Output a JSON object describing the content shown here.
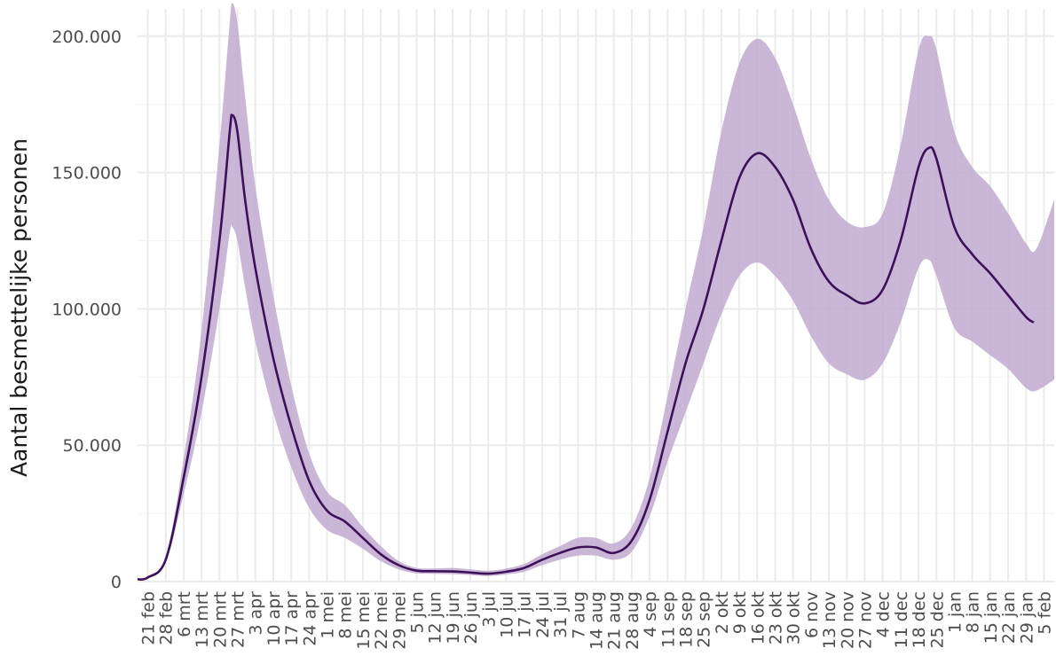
{
  "chart_data": {
    "type": "area",
    "title": "",
    "xlabel": "",
    "ylabel": "Aantal besmettelijke personen",
    "grid": true,
    "legend": "none",
    "colors": {
      "line": "#3d1157",
      "band": "#c1aad0",
      "grid": "#ebebeb",
      "text": "#4d4d4d"
    },
    "ylim": [
      0,
      210000
    ],
    "y_ticks": [
      0,
      50000,
      100000,
      150000,
      200000
    ],
    "y_tick_labels": [
      "0",
      "50.000",
      "100.000",
      "150.000",
      "200.000"
    ],
    "x_tick_labels": [
      "21 feb",
      "28 feb",
      "6 mrt",
      "13 mrt",
      "20 mrt",
      "27 mrt",
      "3 apr",
      "10 apr",
      "17 apr",
      "24 apr",
      "1 mei",
      "8 mei",
      "15 mei",
      "22 mei",
      "29 mei",
      "5 jun",
      "12 jun",
      "19 jun",
      "26 jun",
      "3 jul",
      "10 jul",
      "17 jul",
      "24 jul",
      "31 jul",
      "7 aug",
      "14 aug",
      "21 aug",
      "28 aug",
      "4 sep",
      "11 sep",
      "18 sep",
      "25 sep",
      "2 okt",
      "9 okt",
      "16 okt",
      "23 okt",
      "30 okt",
      "6 nov",
      "13 nov",
      "20 nov",
      "27 nov",
      "4 dec",
      "11 dec",
      "18 dec",
      "25 dec",
      "1 jan",
      "8 jan",
      "15 jan",
      "22 jan",
      "29 jan",
      "5 feb"
    ],
    "x_start": "2020-02-17",
    "x_end": "2021-02-09",
    "series": [
      {
        "kind": "estimate",
        "points": [
          [
            "2020-02-17",
            800
          ],
          [
            "2020-02-21",
            1500
          ],
          [
            "2020-02-28",
            8000
          ],
          [
            "2020-03-06",
            38000
          ],
          [
            "2020-03-13",
            75000
          ],
          [
            "2020-03-20",
            125000
          ],
          [
            "2020-03-24",
            165000
          ],
          [
            "2020-03-25",
            171000
          ],
          [
            "2020-03-27",
            165000
          ],
          [
            "2020-03-30",
            140000
          ],
          [
            "2020-04-03",
            115000
          ],
          [
            "2020-04-10",
            82000
          ],
          [
            "2020-04-17",
            57000
          ],
          [
            "2020-04-24",
            37000
          ],
          [
            "2020-05-01",
            26000
          ],
          [
            "2020-05-08",
            22000
          ],
          [
            "2020-05-15",
            16000
          ],
          [
            "2020-05-22",
            10000
          ],
          [
            "2020-05-29",
            6000
          ],
          [
            "2020-06-05",
            4000
          ],
          [
            "2020-06-12",
            3800
          ],
          [
            "2020-06-19",
            3700
          ],
          [
            "2020-06-26",
            3300
          ],
          [
            "2020-07-03",
            2900
          ],
          [
            "2020-07-10",
            3600
          ],
          [
            "2020-07-17",
            5000
          ],
          [
            "2020-07-24",
            8000
          ],
          [
            "2020-07-31",
            10500
          ],
          [
            "2020-08-07",
            12500
          ],
          [
            "2020-08-14",
            12500
          ],
          [
            "2020-08-21",
            10500
          ],
          [
            "2020-08-28",
            15000
          ],
          [
            "2020-09-04",
            30000
          ],
          [
            "2020-09-11",
            55000
          ],
          [
            "2020-09-18",
            80000
          ],
          [
            "2020-09-25",
            100000
          ],
          [
            "2020-10-02",
            125000
          ],
          [
            "2020-10-09",
            148000
          ],
          [
            "2020-10-16",
            157000
          ],
          [
            "2020-10-23",
            152000
          ],
          [
            "2020-10-30",
            140000
          ],
          [
            "2020-11-06",
            122000
          ],
          [
            "2020-11-13",
            110000
          ],
          [
            "2020-11-20",
            105000
          ],
          [
            "2020-11-27",
            102000
          ],
          [
            "2020-12-04",
            107000
          ],
          [
            "2020-12-11",
            125000
          ],
          [
            "2020-12-18",
            152000
          ],
          [
            "2020-12-22",
            159000
          ],
          [
            "2020-12-25",
            155000
          ],
          [
            "2021-01-01",
            130000
          ],
          [
            "2021-01-08",
            120000
          ],
          [
            "2021-01-15",
            113000
          ],
          [
            "2021-01-22",
            105000
          ],
          [
            "2021-01-29",
            97000
          ],
          [
            "2021-02-01",
            95000
          ]
        ]
      },
      {
        "kind": "upper",
        "points": [
          [
            "2020-02-17",
            800
          ],
          [
            "2020-02-21",
            1600
          ],
          [
            "2020-02-28",
            9000
          ],
          [
            "2020-03-06",
            45000
          ],
          [
            "2020-03-13",
            92000
          ],
          [
            "2020-03-20",
            160000
          ],
          [
            "2020-03-24",
            205000
          ],
          [
            "2020-03-25",
            212000
          ],
          [
            "2020-03-27",
            205000
          ],
          [
            "2020-03-30",
            178000
          ],
          [
            "2020-04-03",
            145000
          ],
          [
            "2020-04-10",
            105000
          ],
          [
            "2020-04-17",
            72000
          ],
          [
            "2020-04-24",
            47000
          ],
          [
            "2020-05-01",
            33000
          ],
          [
            "2020-05-08",
            28000
          ],
          [
            "2020-05-15",
            20000
          ],
          [
            "2020-05-22",
            13000
          ],
          [
            "2020-05-29",
            7500
          ],
          [
            "2020-06-05",
            5000
          ],
          [
            "2020-06-12",
            4800
          ],
          [
            "2020-06-19",
            5000
          ],
          [
            "2020-06-26",
            4500
          ],
          [
            "2020-07-03",
            4000
          ],
          [
            "2020-07-10",
            4800
          ],
          [
            "2020-07-17",
            6500
          ],
          [
            "2020-07-24",
            10000
          ],
          [
            "2020-07-31",
            13000
          ],
          [
            "2020-08-07",
            16000
          ],
          [
            "2020-08-14",
            16000
          ],
          [
            "2020-08-21",
            14000
          ],
          [
            "2020-08-28",
            20000
          ],
          [
            "2020-09-04",
            38000
          ],
          [
            "2020-09-11",
            68000
          ],
          [
            "2020-09-18",
            100000
          ],
          [
            "2020-09-25",
            130000
          ],
          [
            "2020-10-02",
            165000
          ],
          [
            "2020-10-09",
            190000
          ],
          [
            "2020-10-16",
            199000
          ],
          [
            "2020-10-23",
            192000
          ],
          [
            "2020-10-30",
            175000
          ],
          [
            "2020-11-06",
            155000
          ],
          [
            "2020-11-13",
            140000
          ],
          [
            "2020-11-20",
            132000
          ],
          [
            "2020-11-27",
            130000
          ],
          [
            "2020-12-04",
            135000
          ],
          [
            "2020-12-11",
            160000
          ],
          [
            "2020-12-18",
            195000
          ],
          [
            "2020-12-22",
            200000
          ],
          [
            "2020-12-25",
            195000
          ],
          [
            "2021-01-01",
            165000
          ],
          [
            "2021-01-08",
            152000
          ],
          [
            "2021-01-15",
            145000
          ],
          [
            "2021-01-22",
            135000
          ],
          [
            "2021-01-29",
            124000
          ],
          [
            "2021-02-02",
            122000
          ],
          [
            "2021-02-09",
            140000
          ]
        ]
      },
      {
        "kind": "lower",
        "points": [
          [
            "2020-02-17",
            800
          ],
          [
            "2020-02-21",
            1400
          ],
          [
            "2020-02-28",
            7000
          ],
          [
            "2020-03-06",
            32000
          ],
          [
            "2020-03-13",
            62000
          ],
          [
            "2020-03-20",
            100000
          ],
          [
            "2020-03-24",
            128000
          ],
          [
            "2020-03-25",
            130000
          ],
          [
            "2020-03-27",
            125000
          ],
          [
            "2020-03-30",
            108000
          ],
          [
            "2020-04-03",
            88000
          ],
          [
            "2020-04-10",
            62000
          ],
          [
            "2020-04-17",
            42000
          ],
          [
            "2020-04-24",
            27000
          ],
          [
            "2020-05-01",
            19000
          ],
          [
            "2020-05-08",
            16000
          ],
          [
            "2020-05-15",
            12000
          ],
          [
            "2020-05-22",
            7500
          ],
          [
            "2020-05-29",
            4500
          ],
          [
            "2020-06-05",
            3000
          ],
          [
            "2020-06-12",
            2800
          ],
          [
            "2020-06-19",
            2700
          ],
          [
            "2020-06-26",
            2400
          ],
          [
            "2020-07-03",
            2000
          ],
          [
            "2020-07-10",
            2600
          ],
          [
            "2020-07-17",
            3600
          ],
          [
            "2020-07-24",
            6000
          ],
          [
            "2020-07-31",
            8000
          ],
          [
            "2020-08-07",
            9500
          ],
          [
            "2020-08-14",
            9500
          ],
          [
            "2020-08-21",
            8000
          ],
          [
            "2020-08-28",
            11000
          ],
          [
            "2020-09-04",
            24000
          ],
          [
            "2020-09-11",
            44000
          ],
          [
            "2020-09-18",
            62000
          ],
          [
            "2020-09-25",
            80000
          ],
          [
            "2020-10-02",
            98000
          ],
          [
            "2020-10-09",
            112000
          ],
          [
            "2020-10-16",
            117000
          ],
          [
            "2020-10-23",
            112000
          ],
          [
            "2020-10-30",
            103000
          ],
          [
            "2020-11-06",
            90000
          ],
          [
            "2020-11-13",
            80000
          ],
          [
            "2020-11-20",
            76000
          ],
          [
            "2020-11-27",
            74000
          ],
          [
            "2020-12-04",
            80000
          ],
          [
            "2020-12-11",
            95000
          ],
          [
            "2020-12-18",
            115000
          ],
          [
            "2020-12-22",
            118000
          ],
          [
            "2020-12-25",
            112000
          ],
          [
            "2021-01-01",
            93000
          ],
          [
            "2021-01-08",
            88000
          ],
          [
            "2021-01-15",
            83000
          ],
          [
            "2021-01-22",
            78000
          ],
          [
            "2021-01-29",
            71000
          ],
          [
            "2021-02-02",
            70000
          ],
          [
            "2021-02-09",
            74000
          ]
        ]
      }
    ]
  }
}
